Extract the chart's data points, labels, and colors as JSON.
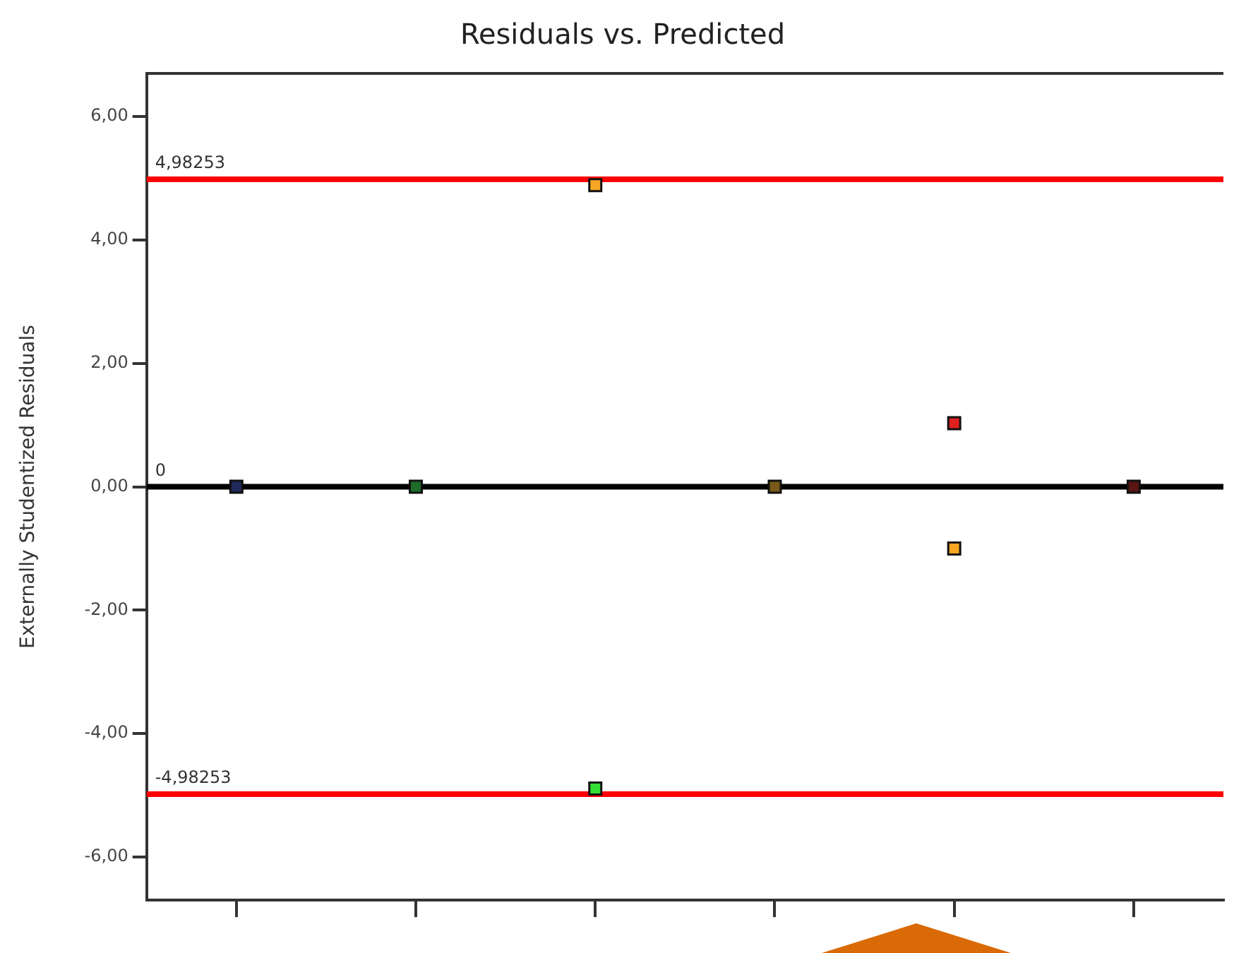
{
  "chart_data": {
    "type": "scatter",
    "title": "Residuals vs. Predicted",
    "ylabel": "Externally Studentized Residuals",
    "categories": [
      null,
      null,
      null,
      null,
      null,
      null
    ],
    "series": [
      {
        "values": [
          0,
          0,
          4.89,
          0,
          1.03,
          0
        ],
        "colors": [
          "#1f2a5a",
          "#1e6b2a",
          "#f5a623",
          "#7a5a1a",
          "#e02020",
          "#5a1515"
        ]
      },
      {
        "values": [
          null,
          null,
          -4.89,
          null,
          -1,
          null
        ],
        "colors": [
          "#000000",
          "#000000",
          "#33dd33",
          "#000000",
          "#f5a623",
          "#000000"
        ]
      }
    ],
    "marker": "square",
    "grid": false,
    "legend": false,
    "ylim": [
      -6.7,
      6.7
    ],
    "yticks": [
      {
        "value": -6,
        "label": "-6,00"
      },
      {
        "value": -4,
        "label": "-4,00"
      },
      {
        "value": -2,
        "label": "-2,00"
      },
      {
        "value": 0,
        "label": "0,00"
      },
      {
        "value": 2,
        "label": "2,00"
      },
      {
        "value": 4,
        "label": "4,00"
      },
      {
        "value": 6,
        "label": "6,00"
      }
    ],
    "ref_lines": [
      {
        "axis": "y",
        "value": 4.98253,
        "label": "4,98253",
        "color": "#ff0000"
      },
      {
        "axis": "y",
        "value": 0,
        "label": "0",
        "color": "#000000"
      },
      {
        "axis": "y",
        "value": -4.98253,
        "label": "-4,98253",
        "color": "#ff0000"
      }
    ]
  }
}
